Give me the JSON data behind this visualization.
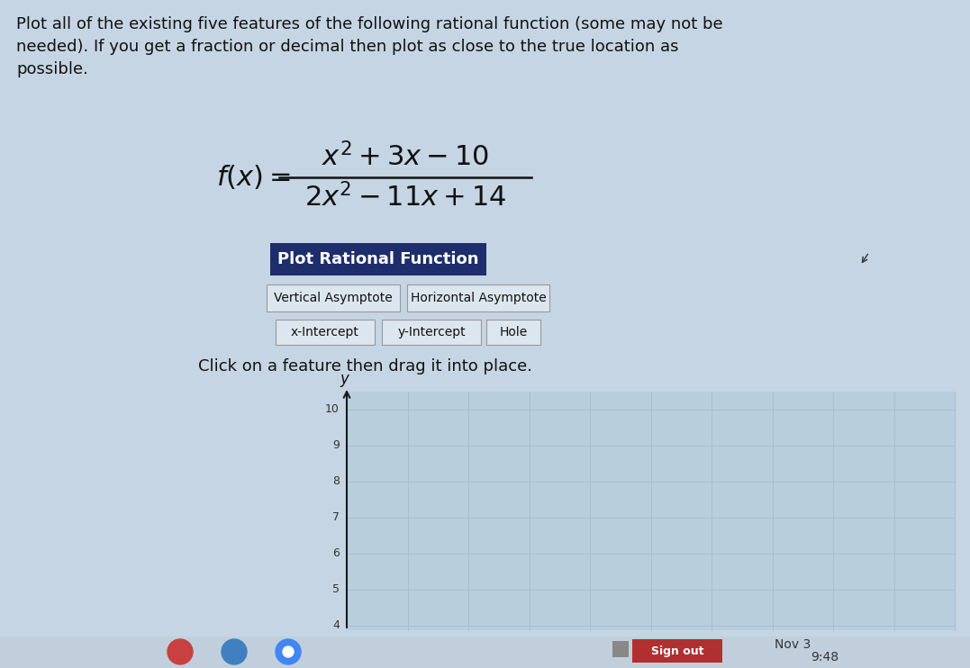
{
  "bg_color": "#c5d5e3",
  "title_text": "Plot all of the existing five features of the following rational function (some may not be\nneeded). If you get a fraction or decimal then plot as close to the true location as\npossible.",
  "formula_numerator": "$x^2 + 3x - 10$",
  "formula_denominator": "$2x^2 - 11x + 14$",
  "formula_lhs": "$f(x) =$",
  "btn_main_label": "Plot Rational Function",
  "btn_main_bg": "#1e2d6b",
  "btn_main_fg": "#ffffff",
  "btn_va_label": "Vertical Asymptote",
  "btn_ha_label": "Horizontal Asymptote",
  "btn_xi_label": "x-Intercept",
  "btn_yi_label": "y-Intercept",
  "btn_hole_label": "Hole",
  "btn_outline_color": "#999999",
  "btn_bg": "#dce6ef",
  "instruction_text": "Click on a feature then drag it into place.",
  "grid_bg": "#ccdce8",
  "grid_bg2": "#b8cedd",
  "axis_color": "#1a1a1a",
  "grid_color": "#a8bed0",
  "y_ticks": [
    4,
    5,
    6,
    7,
    8,
    9,
    10
  ],
  "y_label": "y",
  "taskbar_bg": "#c0cfdb",
  "sign_out_btn_color": "#b03030",
  "sign_out_text": "Sign out",
  "date_text": "Nov 3",
  "time_text": "9:48",
  "cursor_color": "#222222"
}
